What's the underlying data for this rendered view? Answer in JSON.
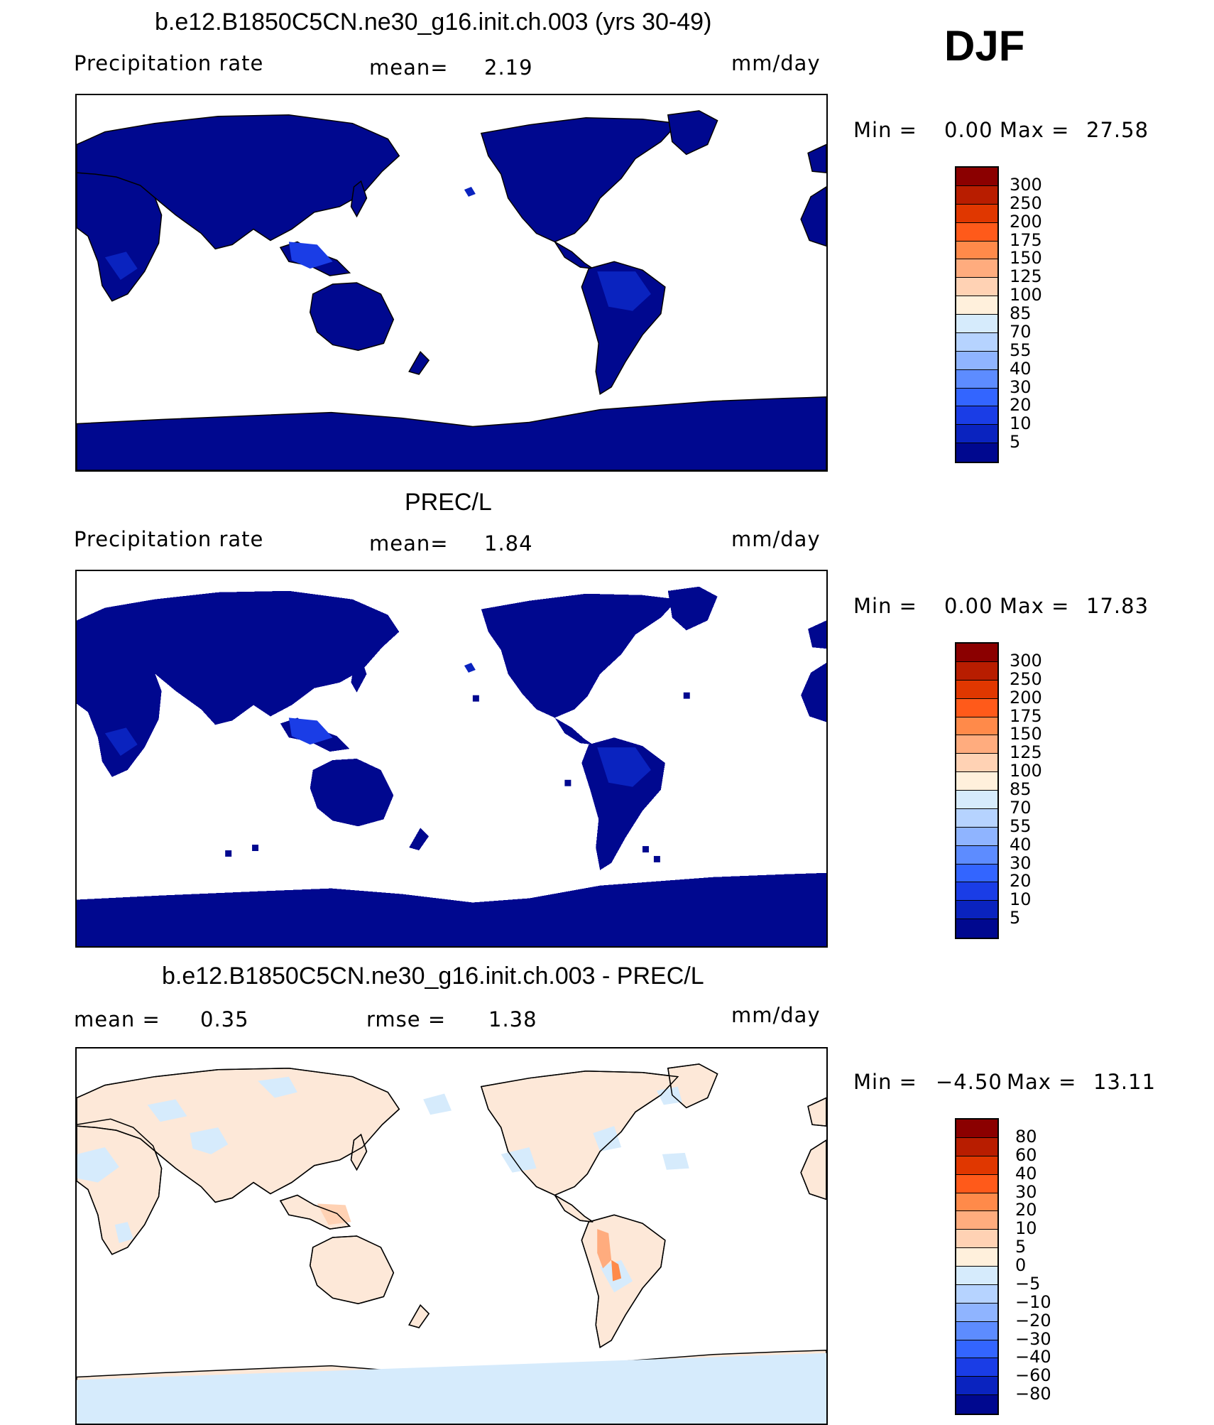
{
  "season": "DJF",
  "panels": [
    {
      "title": "b.e12.B1850C5CN.ne30_g16.init.ch.003 (yrs 30-49)",
      "left_label": "Precipitation rate",
      "mean_label": "mean=",
      "mean_value": "2.19",
      "units": "mm/day",
      "min_label": "Min =",
      "min_value": "0.00",
      "max_label": "Max =",
      "max_value": "27.58",
      "land_color": "#00088f",
      "style": "smooth",
      "colorbar": {
        "labels": [
          "300",
          "250",
          "200",
          "175",
          "150",
          "125",
          "100",
          "85",
          "70",
          "55",
          "40",
          "30",
          "20",
          "10",
          "5"
        ],
        "colors": [
          "#8b0000",
          "#b81d00",
          "#e03700",
          "#ff5a1a",
          "#ff8a4a",
          "#ffac7e",
          "#ffd2b4",
          "#fff0dc",
          "#d6ebfc",
          "#b6d3ff",
          "#8fb4ff",
          "#5d8cff",
          "#3365ff",
          "#1a3de6",
          "#0a23bf",
          "#00088f"
        ]
      }
    },
    {
      "title": "PREC/L",
      "left_label": "Precipitation rate",
      "mean_label": "mean=",
      "mean_value": "1.84",
      "units": "mm/day",
      "min_label": "Min =",
      "min_value": "0.00",
      "max_label": "Max =",
      "max_value": "17.83",
      "land_color": "#00088f",
      "style": "blocky",
      "colorbar": {
        "labels": [
          "300",
          "250",
          "200",
          "175",
          "150",
          "125",
          "100",
          "85",
          "70",
          "55",
          "40",
          "30",
          "20",
          "10",
          "5"
        ],
        "colors": [
          "#8b0000",
          "#b81d00",
          "#e03700",
          "#ff5a1a",
          "#ff8a4a",
          "#ffac7e",
          "#ffd2b4",
          "#fff0dc",
          "#d6ebfc",
          "#b6d3ff",
          "#8fb4ff",
          "#5d8cff",
          "#3365ff",
          "#1a3de6",
          "#0a23bf",
          "#00088f"
        ]
      }
    },
    {
      "title": "b.e12.B1850C5CN.ne30_g16.init.ch.003 - PREC/L",
      "left_label": "mean =",
      "left_value": "0.35",
      "mean_label": "rmse =",
      "mean_value": "1.38",
      "units": "mm/day",
      "min_label": "Min =",
      "min_value": "−4.50",
      "max_label": "Max =",
      "max_value": "13.11",
      "land_color": "#fde8d8",
      "style": "diff",
      "colorbar": {
        "labels": [
          "80",
          "60",
          "40",
          "30",
          "20",
          "10",
          "5",
          "0",
          "−5",
          "−10",
          "−20",
          "−30",
          "−40",
          "−60",
          "−80"
        ],
        "colors": [
          "#8b0000",
          "#b81d00",
          "#e03700",
          "#ff5a1a",
          "#ff8a4a",
          "#ffac7e",
          "#ffd2b4",
          "#fff0dc",
          "#d6ebfc",
          "#b6d3ff",
          "#8fb4ff",
          "#5d8cff",
          "#3365ff",
          "#1a3de6",
          "#0a23bf",
          "#00088f"
        ]
      }
    }
  ]
}
